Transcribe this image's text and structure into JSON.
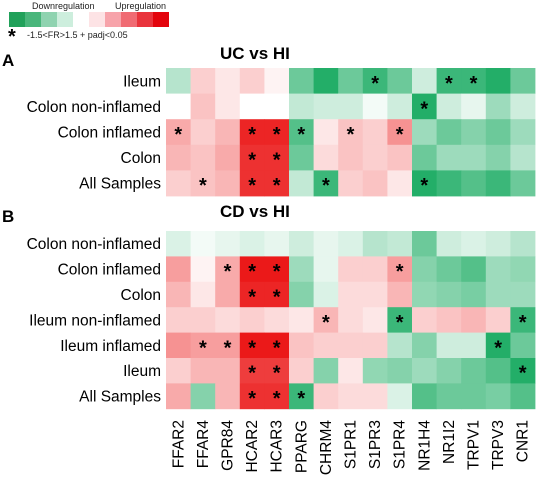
{
  "legend": {
    "down_label": "Downregulation",
    "up_label": "Upregulation",
    "star_symbol": "*",
    "star_note": "-1.5<FR>1.5 + padj<0.05",
    "swatch_colors": [
      "#21a15a",
      "#49b67b",
      "#8fd3b0",
      "#cdeedd",
      "#ffffff",
      "#fde3e5",
      "#f7a3aa",
      "#f06b73",
      "#e9343c",
      "#e3040c"
    ]
  },
  "colors": {
    "down_strong": "#0aa557",
    "neutral": "#ffffff",
    "up_strong": "#ea0d0d"
  },
  "chart_data": [
    {
      "type": "heatmap",
      "panel_letter": "A",
      "title": "UC vs HI",
      "rows": [
        "Ileum",
        "Colon non-inflamed",
        "Colon inflamed",
        "Colon",
        "All Samples"
      ],
      "columns": [
        "FFAR2",
        "FFAR4",
        "GPR84",
        "HCAR2",
        "HCAR3",
        "PPARG",
        "CHRM4",
        "S1PR1",
        "S1PR3",
        "S1PR4",
        "NR1H4",
        "NR1I2",
        "TRPV1",
        "TRPV3",
        "CNR1"
      ],
      "values": [
        [
          -0.3,
          0.2,
          0.1,
          0.2,
          0.05,
          -0.6,
          -0.9,
          -0.6,
          -0.8,
          -0.6,
          -0.2,
          -0.8,
          -0.8,
          -0.9,
          -0.6
        ],
        [
          0.0,
          0.25,
          0.1,
          0.0,
          0.0,
          -0.25,
          -0.2,
          -0.2,
          -0.05,
          -0.2,
          -0.9,
          -0.2,
          -0.1,
          -0.4,
          -0.2
        ],
        [
          0.35,
          0.2,
          0.3,
          0.9,
          0.9,
          -0.7,
          0.1,
          0.25,
          0.2,
          0.45,
          -0.4,
          -0.6,
          -0.5,
          -0.6,
          -0.4
        ],
        [
          0.3,
          0.25,
          0.35,
          0.85,
          0.85,
          -0.6,
          0.15,
          0.25,
          0.2,
          0.25,
          -0.6,
          -0.4,
          -0.4,
          -0.5,
          -0.3
        ],
        [
          0.2,
          0.25,
          0.3,
          0.85,
          0.85,
          -0.25,
          -0.8,
          0.2,
          0.25,
          0.1,
          -0.9,
          -0.8,
          -0.7,
          -0.8,
          -0.6
        ]
      ],
      "significant": [
        [
          false,
          false,
          false,
          false,
          false,
          false,
          false,
          false,
          true,
          false,
          false,
          true,
          true,
          false,
          false
        ],
        [
          false,
          false,
          false,
          false,
          false,
          false,
          false,
          false,
          false,
          false,
          true,
          false,
          false,
          false,
          false
        ],
        [
          true,
          false,
          false,
          true,
          true,
          true,
          false,
          true,
          false,
          true,
          false,
          false,
          false,
          false,
          false
        ],
        [
          false,
          false,
          false,
          true,
          true,
          false,
          false,
          false,
          false,
          false,
          false,
          false,
          false,
          false,
          false
        ],
        [
          false,
          true,
          false,
          true,
          true,
          false,
          true,
          false,
          false,
          false,
          true,
          false,
          false,
          false,
          false
        ]
      ]
    },
    {
      "type": "heatmap",
      "panel_letter": "B",
      "title": "CD vs HI",
      "rows": [
        "Colon non-inflamed",
        "Colon inflamed",
        "Colon",
        "Ileum non-inflamed",
        "Ileum inflamed",
        "Ileum",
        "All Samples"
      ],
      "columns": [
        "FFAR2",
        "FFAR4",
        "GPR84",
        "HCAR2",
        "HCAR3",
        "PPARG",
        "CHRM4",
        "S1PR1",
        "S1PR3",
        "S1PR4",
        "NR1H4",
        "NR1I2",
        "TRPV1",
        "TRPV3",
        "CNR1"
      ],
      "values": [
        [
          -0.15,
          -0.05,
          -0.1,
          -0.15,
          -0.1,
          -0.2,
          -0.1,
          -0.15,
          -0.3,
          -0.25,
          -0.6,
          -0.2,
          -0.15,
          -0.2,
          -0.3
        ],
        [
          0.4,
          0.05,
          0.35,
          0.95,
          0.95,
          -0.4,
          -0.1,
          0.2,
          0.2,
          0.4,
          -0.5,
          -0.6,
          -0.7,
          -0.4,
          -0.45
        ],
        [
          0.3,
          0.1,
          0.35,
          0.9,
          0.9,
          -0.5,
          -0.15,
          0.15,
          0.15,
          0.3,
          -0.45,
          -0.5,
          -0.55,
          -0.4,
          -0.4
        ],
        [
          0.2,
          0.2,
          0.15,
          0.2,
          0.15,
          0.1,
          0.3,
          0.15,
          0.1,
          -0.8,
          0.2,
          0.25,
          0.3,
          0.2,
          -0.8
        ],
        [
          0.45,
          0.4,
          0.4,
          0.95,
          0.95,
          0.25,
          0.2,
          0.2,
          0.2,
          -0.3,
          -0.5,
          -0.2,
          -0.2,
          -0.9,
          -0.6
        ],
        [
          0.2,
          0.3,
          0.3,
          0.8,
          0.8,
          0.2,
          -0.5,
          0.1,
          -0.45,
          -0.5,
          -0.4,
          -0.5,
          -0.6,
          -0.7,
          -0.9
        ],
        [
          0.35,
          -0.5,
          0.3,
          0.85,
          0.85,
          -0.8,
          0.2,
          0.15,
          0.15,
          -0.15,
          -0.7,
          -0.6,
          -0.6,
          -0.55,
          -0.7
        ]
      ],
      "significant": [
        [
          false,
          false,
          false,
          false,
          false,
          false,
          false,
          false,
          false,
          false,
          false,
          false,
          false,
          false,
          false
        ],
        [
          false,
          false,
          true,
          true,
          true,
          false,
          false,
          false,
          false,
          true,
          false,
          false,
          false,
          false,
          false
        ],
        [
          false,
          false,
          false,
          true,
          true,
          false,
          false,
          false,
          false,
          false,
          false,
          false,
          false,
          false,
          false
        ],
        [
          false,
          false,
          false,
          false,
          false,
          false,
          true,
          false,
          false,
          true,
          false,
          false,
          false,
          false,
          true
        ],
        [
          false,
          true,
          true,
          true,
          true,
          false,
          false,
          false,
          false,
          false,
          false,
          false,
          false,
          true,
          false
        ],
        [
          false,
          false,
          false,
          true,
          true,
          false,
          false,
          false,
          false,
          false,
          false,
          false,
          false,
          false,
          true
        ],
        [
          false,
          false,
          false,
          true,
          true,
          true,
          false,
          false,
          false,
          false,
          false,
          false,
          false,
          false,
          false
        ]
      ]
    }
  ]
}
